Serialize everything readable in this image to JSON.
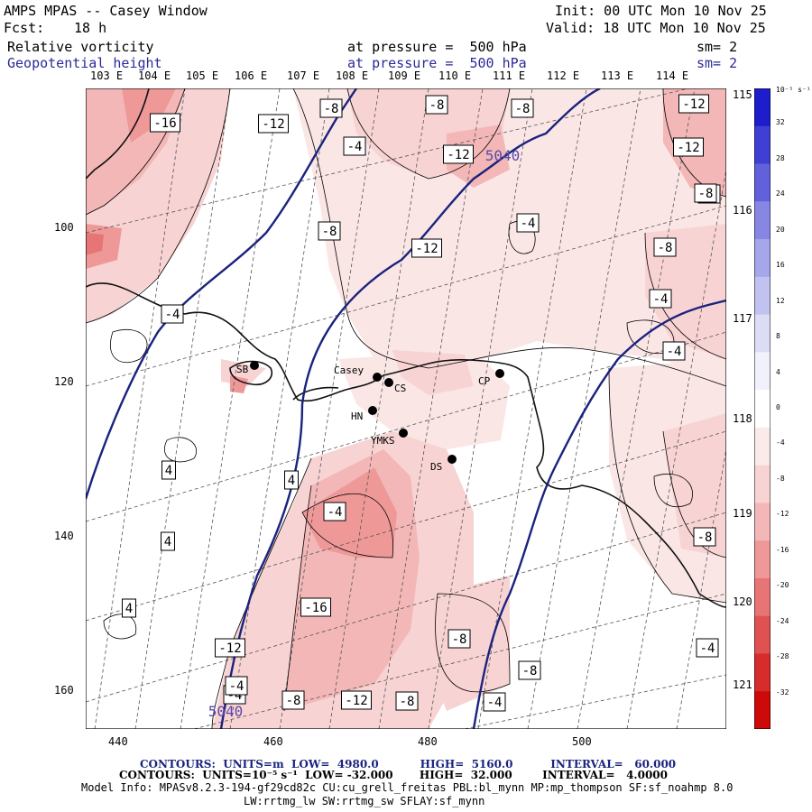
{
  "header": {
    "title": "AMPS MPAS -- Casey Window",
    "fcst_label": "Fcst:",
    "fcst_value": "18 h",
    "init": "Init: 00 UTC Mon 10 Nov 25",
    "valid": "Valid: 18 UTC Mon 10 Nov 25",
    "field1_name": "Relative vorticity",
    "field1_level": "at pressure =  500 hPa",
    "field1_sm": "sm= 2",
    "field2_name": "Geopotential height",
    "field2_level": "at pressure =  500 hPa",
    "field2_sm": "sm= 2"
  },
  "map": {
    "top_longitudes": [
      "103 E",
      "104 E",
      "105 E",
      "106 E",
      "107 E",
      "108 E",
      "109 E",
      "110 E",
      "111 E",
      "112 E",
      "113 E",
      "114 E"
    ],
    "right_longitudes": [
      "115 E",
      "116 E",
      "117 E",
      "118 E",
      "119 E",
      "120 E",
      "121 E"
    ],
    "y_ticks": [
      "100",
      "120",
      "140",
      "160"
    ],
    "x_ticks": [
      "440",
      "460",
      "480",
      "500"
    ],
    "stations": [
      {
        "name": "SB"
      },
      {
        "name": "Casey"
      },
      {
        "name": "CS"
      },
      {
        "name": "HN"
      },
      {
        "name": "YMKS"
      },
      {
        "name": "DS"
      },
      {
        "name": "CP"
      }
    ],
    "vort_labels": [
      "-16",
      "-12",
      "-8",
      "-8",
      "-4",
      "-8",
      "-8",
      "-12",
      "-12",
      "-12",
      "-12",
      "-8",
      "-4",
      "-4",
      "-8",
      "-8",
      "-4",
      "-4",
      "4",
      "4",
      "4",
      "4",
      "-4",
      "-16",
      "-12",
      "-8",
      "-12",
      "-8",
      "-8",
      "-4",
      "-8",
      "-4",
      "-4",
      "-8",
      "-4"
    ],
    "height_labels": [
      "5040",
      "5040"
    ]
  },
  "colorbar": {
    "units": "10⁻⁵ s⁻¹",
    "ticks": [
      "32",
      "28",
      "24",
      "20",
      "16",
      "12",
      "8",
      "4",
      "0",
      "-4",
      "-8",
      "-12",
      "-16",
      "-20",
      "-24",
      "-28",
      "-32"
    ],
    "colors": {
      "pos": [
        "#ffffff",
        "#f1f1fb",
        "#dcdcf5",
        "#c2c2f0",
        "#a6a6ea",
        "#8787e3",
        "#6161db",
        "#3f3fd4",
        "#1d1dcc"
      ],
      "neg": [
        "#ffffff",
        "#fbeaea",
        "#f8d3d3",
        "#f3b7b7",
        "#ee9898",
        "#e77575",
        "#e05151",
        "#d72c2c",
        "#cc0a0a"
      ]
    }
  },
  "footer": {
    "line1": "CONTOURS:  UNITS=m  LOW=  4980.0           HIGH=  5160.0          INTERVAL=   60.000",
    "line2": "CONTOURS:  UNITS=10⁻⁵ s⁻¹  LOW= -32.000       HIGH=  32.000        INTERVAL=   4.0000",
    "line3": "Model Info: MPASv8.2.3-194-gf29cd82c CU:cu_grell_freitas PBL:bl_mynn MP:mp_thompson SF:sf_noahmp 8.0",
    "line4": "LW:rrtmg_lw SW:rrtmg_sw SFLAY:sf_mynn"
  }
}
